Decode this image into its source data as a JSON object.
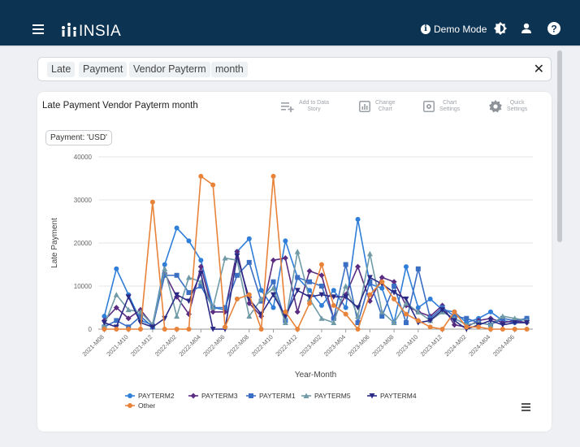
{
  "header": {
    "brand": "INSIA",
    "demo_label": "Demo Mode"
  },
  "search": {
    "chips": [
      "Late",
      "Payment",
      "Vendor Payterm",
      "month"
    ]
  },
  "card": {
    "title": "Late Payment Vendor Payterm month",
    "tools": [
      {
        "label": "Add to Data\nStory",
        "icon": "add-to-story-icon"
      },
      {
        "label": "Change\nChart",
        "icon": "change-chart-icon"
      },
      {
        "label": "Chart\nSettings",
        "icon": "chart-settings-icon"
      },
      {
        "label": "Quick\nSettings",
        "icon": "quick-settings-icon"
      }
    ],
    "currency_filter": "Payment: 'USD'"
  },
  "chart_data": {
    "type": "line",
    "xlabel": "Year-Month",
    "ylabel": "Late Payment",
    "ylim": [
      0,
      40000
    ],
    "yticks": [
      0,
      10000,
      20000,
      30000,
      40000
    ],
    "legend_position": "bottom",
    "categories": [
      "2021-M08",
      "2021-M09",
      "2021-M10",
      "2021-M11",
      "2021-M12",
      "2022-M01",
      "2022-M02",
      "2022-M03",
      "2022-M04",
      "2022-M05",
      "2022-M06",
      "2022-M07",
      "2022-M08",
      "2022-M09",
      "2022-M10",
      "2022-M11",
      "2022-M12",
      "2023-M01",
      "2023-M02",
      "2023-M03",
      "2023-M04",
      "2023-M05",
      "2023-M06",
      "2023-M07",
      "2023-M08",
      "2023-M09",
      "2023-M10",
      "2023-M11",
      "2023-M12",
      "2024-M01",
      "2024-M02",
      "2024-M03",
      "2024-M04",
      "2024-M05",
      "2024-M06",
      "2024-M07"
    ],
    "tick_labels": [
      "2021-M08",
      "2021-M10",
      "2021-M12",
      "2022-M02",
      "2022-M04",
      "2022-M06",
      "2022-M08",
      "2022-M10",
      "2022-M12",
      "2023-M02",
      "2023-M04",
      "2023-M06",
      "2023-M08",
      "2023-M10",
      "2023-M12",
      "2024-M02",
      "2024-M04",
      "2024-M06"
    ],
    "series": [
      {
        "name": "PAYTERM2",
        "color": "#2f7ed8",
        "marker": "circle",
        "values": [
          3000,
          14000,
          8000,
          2000,
          1000,
          15000,
          23500,
          20500,
          16000,
          5000,
          4500,
          18000,
          21000,
          9000,
          5000,
          20500,
          12000,
          9000,
          5500,
          9000,
          5000,
          25500,
          10500,
          9500,
          1500,
          14500,
          5000,
          7000,
          4500,
          4000,
          1500,
          2500,
          4000,
          2000,
          1500,
          2500
        ]
      },
      {
        "name": "PAYTERM3",
        "color": "#5b2d82",
        "marker": "diamond",
        "values": [
          2000,
          5000,
          2500,
          4500,
          1000,
          13000,
          7500,
          3500,
          14500,
          4000,
          4000,
          18000,
          6000,
          3000,
          16000,
          16500,
          4000,
          13500,
          12500,
          2500,
          8000,
          14500,
          6500,
          12000,
          11000,
          5500,
          4000,
          3000,
          5500,
          1000,
          500,
          2000,
          2500,
          1500,
          2000,
          1500
        ]
      },
      {
        "name": "PAYTERM1",
        "color": "#3a6fc4",
        "marker": "square",
        "values": [
          500,
          2000,
          500,
          3000,
          500,
          12500,
          12500,
          8500,
          10000,
          5000,
          5000,
          12500,
          15500,
          6500,
          11000,
          2000,
          12000,
          11000,
          10000,
          2500,
          15000,
          1500,
          11000,
          3000,
          10000,
          1500,
          14000,
          2500,
          5000,
          3000,
          2500,
          1500,
          1000,
          2500,
          2000,
          2500
        ]
      },
      {
        "name": "PAYTERM5",
        "color": "#6f9aa6",
        "marker": "triangle",
        "values": [
          1000,
          8000,
          4500,
          4000,
          1000,
          14000,
          3000,
          12000,
          11000,
          5000,
          16500,
          16000,
          3000,
          7000,
          9500,
          1500,
          18000,
          7000,
          2500,
          1500,
          10000,
          3000,
          17500,
          4000,
          1500,
          6000,
          4000,
          2000,
          4000,
          2500,
          1000,
          1500,
          1000,
          3000,
          2500,
          2000
        ]
      },
      {
        "name": "PAYTERM4",
        "color": "#2a2a86",
        "marker": "triangle-down",
        "values": [
          1500,
          500,
          7500,
          1500,
          500,
          2500,
          8000,
          6500,
          13000,
          0,
          0,
          17000,
          7000,
          3500,
          8000,
          3000,
          9000,
          7500,
          8000,
          7500,
          7500,
          5000,
          12000,
          10500,
          8500,
          7000,
          1500,
          2000,
          4500,
          2000,
          0,
          1000,
          2000,
          1000,
          1500,
          1500
        ]
      },
      {
        "name": "Other",
        "color": "#e8833a",
        "marker": "circle",
        "values": [
          0,
          0,
          0,
          0,
          29500,
          0,
          0,
          0,
          35500,
          33500,
          500,
          7000,
          8000,
          0,
          35500,
          4000,
          0,
          6000,
          15000,
          5500,
          3500,
          0,
          8000,
          11000,
          7000,
          3500,
          2000,
          500,
          0,
          4000,
          500,
          500,
          0,
          0,
          0,
          0
        ]
      }
    ]
  }
}
